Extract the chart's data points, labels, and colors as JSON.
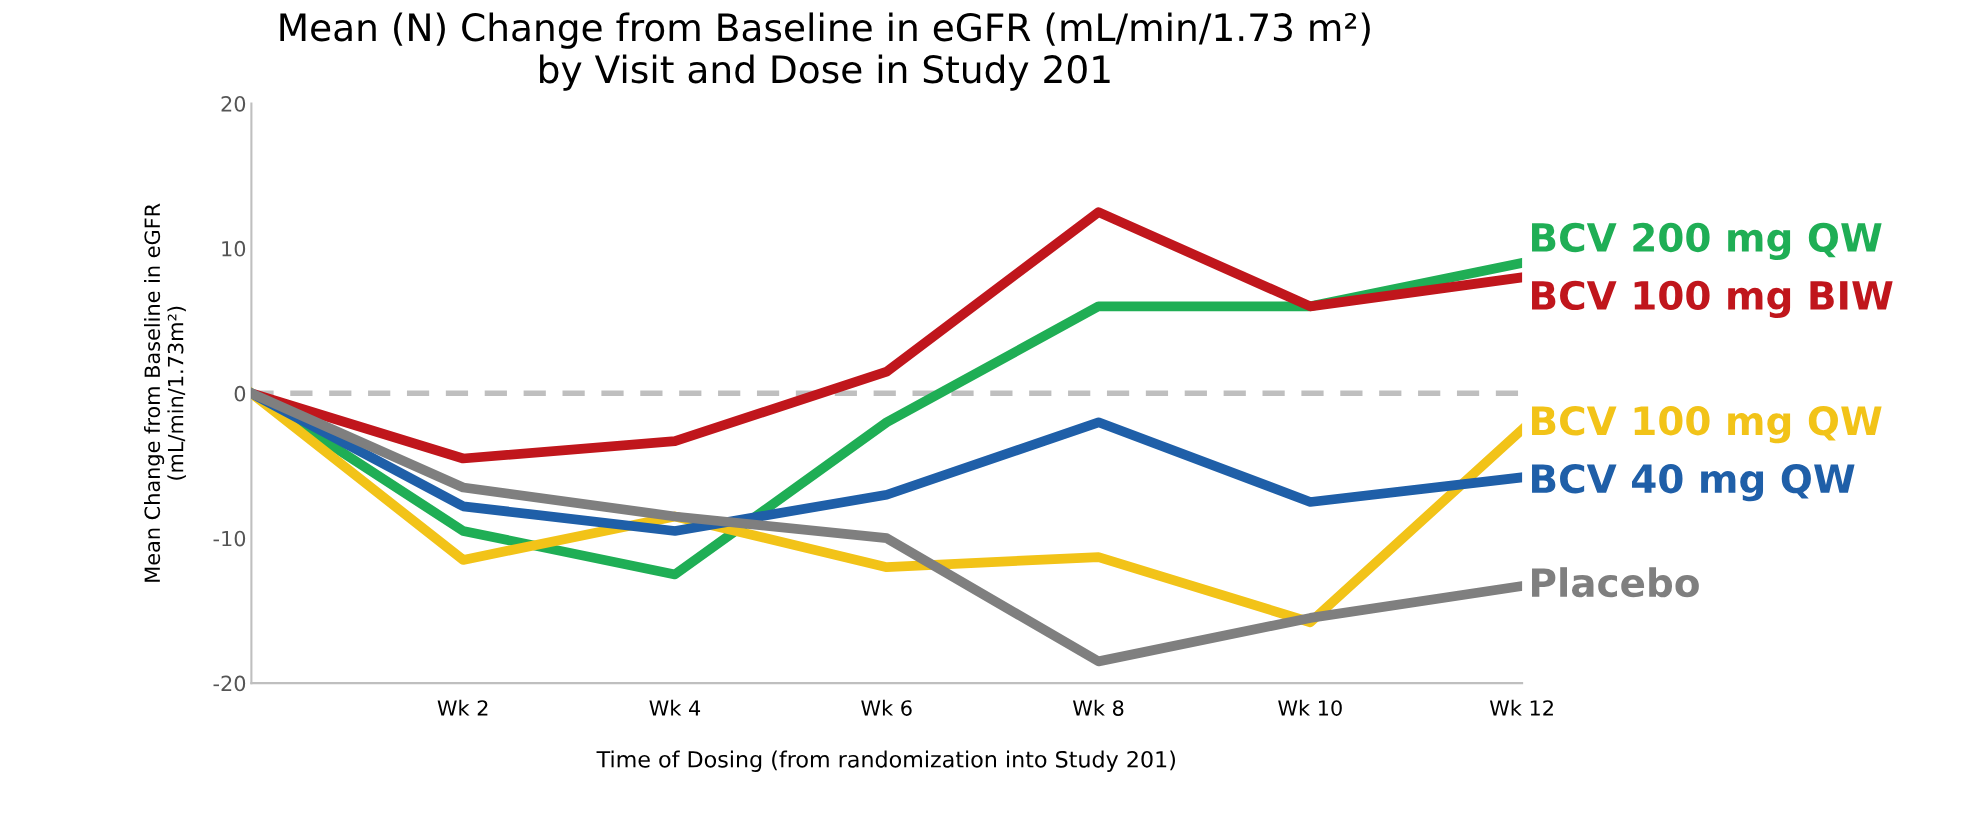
{
  "chart_data": {
    "type": "line",
    "title": "Mean (N) Change from Baseline in eGFR (mL/min/1.73 m²)\nby Visit and Dose in Study 201",
    "xlabel": "Time of Dosing (from randomization into Study 201)",
    "ylabel": "Mean Change from Baseline in eGFR\n(mL/min/1.73m²)",
    "categories": [
      null,
      "Wk 2",
      "Wk 4",
      "Wk 6",
      "Wk 8",
      "Wk 10",
      "Wk 12"
    ],
    "series": [
      {
        "name": "BCV 200 mg QW",
        "color": "#1fae55",
        "values": [
          0,
          -9.5,
          -12.5,
          -2,
          6,
          6,
          9
        ]
      },
      {
        "name": "BCV 100 mg BIW",
        "color": "#c0161c",
        "values": [
          0,
          -4.5,
          -3.3,
          1.5,
          12.5,
          6,
          8
        ]
      },
      {
        "name": "BCV 100 mg QW",
        "color": "#f2c318",
        "values": [
          0,
          -11.5,
          -8.5,
          -12,
          -11.3,
          -15.8,
          -2.5
        ]
      },
      {
        "name": "BCV 40 mg QW",
        "color": "#1f5fa8",
        "values": [
          0,
          -7.8,
          -9.5,
          -7,
          -2,
          -7.5,
          -5.8
        ]
      },
      {
        "name": "Placebo",
        "color": "#7f7f7f",
        "values": [
          0,
          -6.5,
          -8.5,
          -10,
          -18.5,
          -15.5,
          -13.3
        ]
      }
    ],
    "ylim": [
      -20,
      20
    ],
    "yticks": [
      -20,
      -10,
      0,
      10,
      20
    ],
    "ref_lines": [
      {
        "axis": "y",
        "value": 0,
        "color": "#bfbfbf",
        "line_style": "dashed"
      }
    ],
    "grid": false,
    "legend": false,
    "marker": "none",
    "line_style": "solid"
  }
}
